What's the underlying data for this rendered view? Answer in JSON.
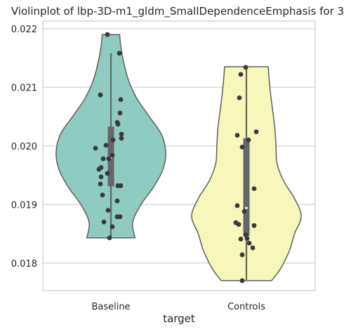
{
  "chart_data": {
    "type": "violin",
    "title": "Violinplot of lbp-3D-m1_gldm_SmallDependenceEmphasis for 3",
    "xlabel": "target",
    "ylabel": "",
    "categories": [
      "Baseline",
      "Controls"
    ],
    "ylim": [
      0.01753,
      0.02213
    ],
    "yticks": [
      "0.018",
      "0.019",
      "0.020",
      "0.021",
      "0.022"
    ],
    "grid": true,
    "series": [
      {
        "category": "Baseline",
        "color": "#8fcbc0",
        "range": [
          0.01843,
          0.0219
        ],
        "q1": 0.01931,
        "median": 0.0198,
        "q3": 0.02033,
        "whisker": [
          0.01843,
          0.02158
        ],
        "profile": [
          [
            0.01843,
            0.44
          ],
          [
            0.0187,
            0.4
          ],
          [
            0.019,
            0.55
          ],
          [
            0.0193,
            0.78
          ],
          [
            0.0196,
            0.95
          ],
          [
            0.0199,
            1.0
          ],
          [
            0.0202,
            0.92
          ],
          [
            0.0205,
            0.7
          ],
          [
            0.0208,
            0.48
          ],
          [
            0.0211,
            0.33
          ],
          [
            0.0214,
            0.24
          ],
          [
            0.0217,
            0.18
          ],
          [
            0.0219,
            0.16
          ]
        ],
        "points": [
          [
            0.0219,
            -0.05
          ],
          [
            0.02158,
            0.12
          ],
          [
            0.02087,
            -0.15
          ],
          [
            0.02079,
            0.14
          ],
          [
            0.02056,
            0.13
          ],
          [
            0.0204,
            0.09
          ],
          [
            0.02037,
            0.1
          ],
          [
            0.0202,
            0.15
          ],
          [
            0.02013,
            0.15
          ],
          [
            0.0201,
            0.03
          ],
          [
            0.02001,
            -0.07
          ],
          [
            0.01996,
            -0.22
          ],
          [
            0.01984,
            0.02
          ],
          [
            0.01978,
            -0.03
          ],
          [
            0.01978,
            -0.11
          ],
          [
            0.01963,
            -0.14
          ],
          [
            0.0196,
            -0.17
          ],
          [
            0.01953,
            -0.05
          ],
          [
            0.01947,
            -0.14
          ],
          [
            0.01935,
            -0.15
          ],
          [
            0.01932,
            0.1
          ],
          [
            0.01932,
            0.14
          ],
          [
            0.01916,
            -0.12
          ],
          [
            0.01906,
            0.09
          ],
          [
            0.0189,
            -0.04
          ],
          [
            0.01879,
            0.09
          ],
          [
            0.01879,
            0.13
          ],
          [
            0.0187,
            -0.1
          ],
          [
            0.01862,
            0.02
          ],
          [
            0.01843,
            -0.02
          ]
        ]
      },
      {
        "category": "Controls",
        "color": "#f7f7bc",
        "range": [
          0.0177,
          0.02135
        ],
        "q1": 0.01846,
        "median": 0.01894,
        "q3": 0.02013,
        "whisker": [
          0.0177,
          0.02135
        ],
        "profile": [
          [
            0.0177,
            0.46
          ],
          [
            0.0179,
            0.62
          ],
          [
            0.0182,
            0.78
          ],
          [
            0.0185,
            0.88
          ],
          [
            0.0188,
            1.0
          ],
          [
            0.0191,
            0.88
          ],
          [
            0.0194,
            0.68
          ],
          [
            0.0197,
            0.56
          ],
          [
            0.02,
            0.54
          ],
          [
            0.0203,
            0.52
          ],
          [
            0.0206,
            0.48
          ],
          [
            0.0209,
            0.44
          ],
          [
            0.0212,
            0.41
          ],
          [
            0.02135,
            0.4
          ]
        ],
        "points": [
          [
            0.02134,
            -0.01
          ],
          [
            0.02122,
            -0.08
          ],
          [
            0.02082,
            -0.1
          ],
          [
            0.02024,
            0.14
          ],
          [
            0.02018,
            -0.13
          ],
          [
            0.0201,
            0.03
          ],
          [
            0.01998,
            -0.06
          ],
          [
            0.01927,
            0.11
          ],
          [
            0.01898,
            -0.13
          ],
          [
            0.01888,
            -0.03
          ],
          [
            0.01869,
            -0.15
          ],
          [
            0.01866,
            -0.11
          ],
          [
            0.01864,
            0.11
          ],
          [
            0.01848,
            -0.01
          ],
          [
            0.01842,
            0.01
          ],
          [
            0.01841,
            -0.08
          ],
          [
            0.01834,
            0.04
          ],
          [
            0.01826,
            0.09
          ],
          [
            0.01814,
            -0.06
          ],
          [
            0.0177,
            -0.06
          ]
        ]
      }
    ]
  }
}
